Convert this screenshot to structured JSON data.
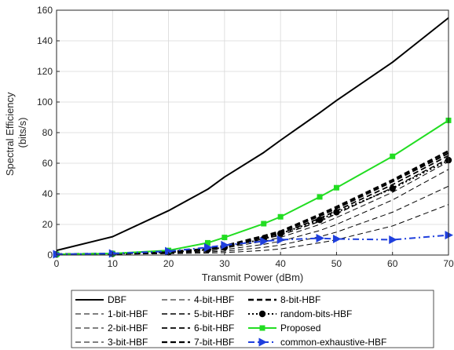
{
  "chart_data": {
    "type": "line",
    "title": "",
    "xlabel": "Transmit Power (dBm)",
    "ylabel_lines": [
      "Spectral Efficiency",
      "(bits/s)"
    ],
    "xlim": [
      0,
      70
    ],
    "ylim": [
      0,
      160
    ],
    "xticks": [
      0,
      10,
      20,
      30,
      40,
      50,
      60,
      70
    ],
    "yticks": [
      0,
      20,
      40,
      60,
      80,
      100,
      120,
      140,
      160
    ],
    "grid": true,
    "legend_position": "bottom",
    "x": [
      0,
      10,
      20,
      27,
      30,
      37,
      40,
      47,
      50,
      60,
      70
    ],
    "series": [
      {
        "name": "DBF",
        "color": "#000000",
        "style": "solid",
        "width": 2,
        "marker": "none",
        "values": [
          3,
          12,
          29,
          43,
          51,
          67,
          75,
          93,
          101,
          126,
          155
        ]
      },
      {
        "name": "1-bit-HBF",
        "color": "#000000",
        "style": "dashed",
        "width": 1,
        "marker": "none",
        "values": [
          0.3,
          0.5,
          0.9,
          1.3,
          1.6,
          3,
          4,
          8,
          10,
          19,
          33
        ]
      },
      {
        "name": "2-bit-HBF",
        "color": "#000000",
        "style": "dashed",
        "width": 1,
        "marker": "none",
        "values": [
          0.4,
          0.7,
          1.3,
          2,
          2.5,
          5,
          6.5,
          12,
          15,
          28,
          45
        ]
      },
      {
        "name": "3-bit-HBF",
        "color": "#000000",
        "style": "dashed",
        "width": 1,
        "marker": "none",
        "values": [
          0.5,
          0.8,
          1.6,
          2.6,
          3.5,
          7,
          9,
          16,
          20,
          36,
          56
        ]
      },
      {
        "name": "4-bit-HBF",
        "color": "#000000",
        "style": "dashed",
        "width": 1,
        "marker": "none",
        "values": [
          0.5,
          0.9,
          1.8,
          3.3,
          4.5,
          9,
          11.5,
          20,
          24.5,
          41,
          61
        ]
      },
      {
        "name": "5-bit-HBF",
        "color": "#000000",
        "style": "dashed",
        "width": 1.4,
        "marker": "none",
        "values": [
          0.5,
          0.9,
          1.9,
          3.6,
          5,
          10.5,
          13,
          22,
          27,
          44,
          63
        ]
      },
      {
        "name": "6-bit-HBF",
        "color": "#000000",
        "style": "dashed",
        "width": 1.8,
        "marker": "none",
        "values": [
          0.5,
          0.9,
          2,
          3.9,
          5.5,
          11.5,
          14,
          24,
          29,
          46,
          65
        ]
      },
      {
        "name": "7-bit-HBF",
        "color": "#000000",
        "style": "dashed",
        "width": 2.2,
        "marker": "none",
        "values": [
          0.5,
          0.9,
          2,
          4,
          5.8,
          12,
          15,
          25.5,
          30.5,
          48,
          66.5
        ]
      },
      {
        "name": "8-bit-HBF",
        "color": "#000000",
        "style": "dashed",
        "width": 2.6,
        "marker": "none",
        "values": [
          0.5,
          0.9,
          2,
          4.1,
          6,
          12.5,
          15.5,
          26.5,
          31.5,
          49,
          68
        ]
      },
      {
        "name": "random-bits-HBF",
        "color": "#000000",
        "style": "dotted",
        "width": 2,
        "marker": "circle",
        "values": [
          0.4,
          0.8,
          1.8,
          3.5,
          5,
          10.5,
          14,
          23,
          28,
          43.5,
          62
        ]
      },
      {
        "name": "Proposed",
        "color": "#22dd22",
        "style": "solid",
        "width": 2,
        "marker": "square",
        "values": [
          0.5,
          1,
          3,
          8,
          11.5,
          20.5,
          25,
          38,
          44,
          64.5,
          88
        ]
      },
      {
        "name": "common-exhaustive-HBF",
        "color": "#1f3fdd",
        "style": "dashdot",
        "width": 2,
        "marker": "triangle-right",
        "values": [
          0.5,
          1,
          2.5,
          5,
          6.5,
          9,
          10,
          11,
          10.5,
          10,
          13
        ]
      }
    ]
  }
}
